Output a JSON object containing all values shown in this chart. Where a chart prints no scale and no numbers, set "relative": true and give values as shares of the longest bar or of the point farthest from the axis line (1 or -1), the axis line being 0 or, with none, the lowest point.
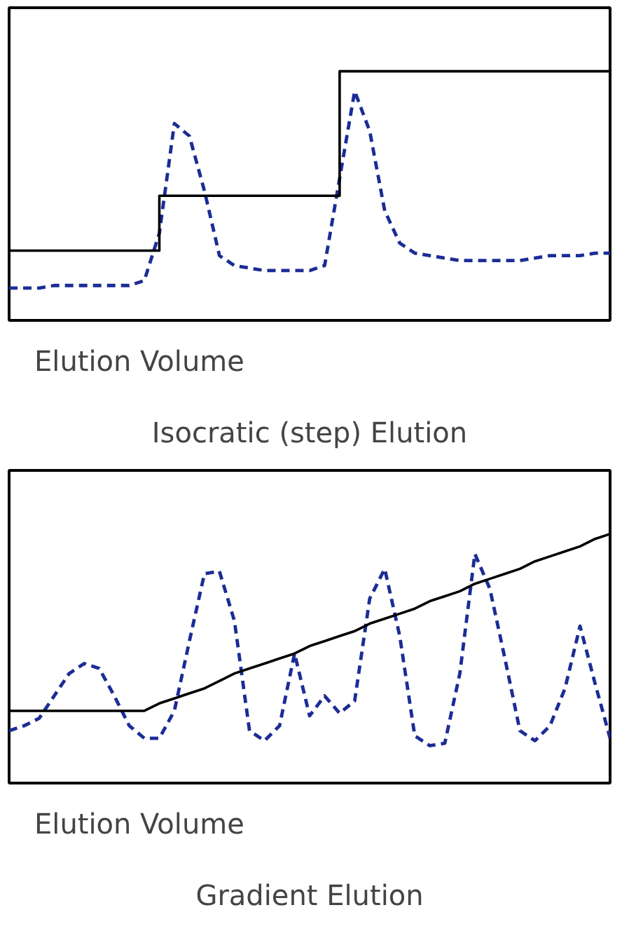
{
  "chart_data": [
    {
      "type": "line",
      "title": "Isocratic (step) Elution",
      "xlabel": "Elution Volume",
      "relative": true,
      "tick_labels": false,
      "categories": [
        null,
        null,
        null,
        null,
        null,
        null,
        null,
        null,
        null,
        null,
        null,
        null,
        null,
        null,
        null,
        null,
        null,
        null,
        null,
        null,
        null,
        null,
        null,
        null,
        null,
        null,
        null,
        null,
        null,
        null,
        null,
        null,
        null,
        null,
        null,
        null,
        null,
        null,
        null,
        null,
        null
      ],
      "series": [
        {
          "line_style": "dashed",
          "color": "#1c2c96",
          "values": [
            0.13,
            0.13,
            0.13,
            0.14,
            0.14,
            0.14,
            0.14,
            0.14,
            0.14,
            0.16,
            0.35,
            0.79,
            0.74,
            0.52,
            0.26,
            0.22,
            0.21,
            0.2,
            0.2,
            0.2,
            0.2,
            0.22,
            0.57,
            0.92,
            0.76,
            0.44,
            0.31,
            0.27,
            0.26,
            0.25,
            0.24,
            0.24,
            0.24,
            0.24,
            0.24,
            0.25,
            0.26,
            0.26,
            0.26,
            0.27,
            0.27
          ]
        },
        {
          "type": "step",
          "line_style": "solid",
          "color": "#000000",
          "values": [
            0.28,
            0.28,
            0.28,
            0.28,
            0.28,
            0.28,
            0.28,
            0.28,
            0.28,
            0.28,
            0.5,
            0.5,
            0.5,
            0.5,
            0.5,
            0.5,
            0.5,
            0.5,
            0.5,
            0.5,
            0.5,
            0.5,
            1.0,
            1.0,
            1.0,
            1.0,
            1.0,
            1.0,
            1.0,
            1.0,
            1.0,
            1.0,
            1.0,
            1.0,
            1.0,
            1.0,
            1.0,
            1.0,
            1.0,
            1.0,
            1.0
          ]
        }
      ]
    },
    {
      "type": "line",
      "title": "Gradient Elution",
      "xlabel": "Elution Volume",
      "relative": true,
      "tick_labels": false,
      "categories": [
        null,
        null,
        null,
        null,
        null,
        null,
        null,
        null,
        null,
        null,
        null,
        null,
        null,
        null,
        null,
        null,
        null,
        null,
        null,
        null,
        null,
        null,
        null,
        null,
        null,
        null,
        null,
        null,
        null,
        null,
        null,
        null,
        null,
        null,
        null,
        null,
        null,
        null,
        null,
        null,
        null
      ],
      "series": [
        {
          "line_style": "dashed",
          "color": "#1c2c96",
          "values": [
            0.21,
            0.23,
            0.26,
            0.35,
            0.44,
            0.48,
            0.46,
            0.35,
            0.23,
            0.18,
            0.18,
            0.29,
            0.57,
            0.84,
            0.85,
            0.65,
            0.21,
            0.17,
            0.23,
            0.52,
            0.27,
            0.35,
            0.28,
            0.33,
            0.74,
            0.86,
            0.59,
            0.19,
            0.15,
            0.16,
            0.44,
            0.92,
            0.78,
            0.5,
            0.21,
            0.17,
            0.23,
            0.38,
            0.63,
            0.4,
            0.18
          ]
        },
        {
          "type": "line",
          "line_style": "solid",
          "color": "#000000",
          "values": [
            0.29,
            0.29,
            0.29,
            0.29,
            0.29,
            0.29,
            0.29,
            0.29,
            0.29,
            0.29,
            0.32,
            0.34,
            0.36,
            0.38,
            0.41,
            0.44,
            0.46,
            0.48,
            0.5,
            0.52,
            0.55,
            0.57,
            0.59,
            0.61,
            0.64,
            0.66,
            0.68,
            0.7,
            0.73,
            0.75,
            0.77,
            0.8,
            0.82,
            0.84,
            0.86,
            0.89,
            0.91,
            0.93,
            0.95,
            0.98,
            1.0
          ]
        }
      ]
    }
  ]
}
